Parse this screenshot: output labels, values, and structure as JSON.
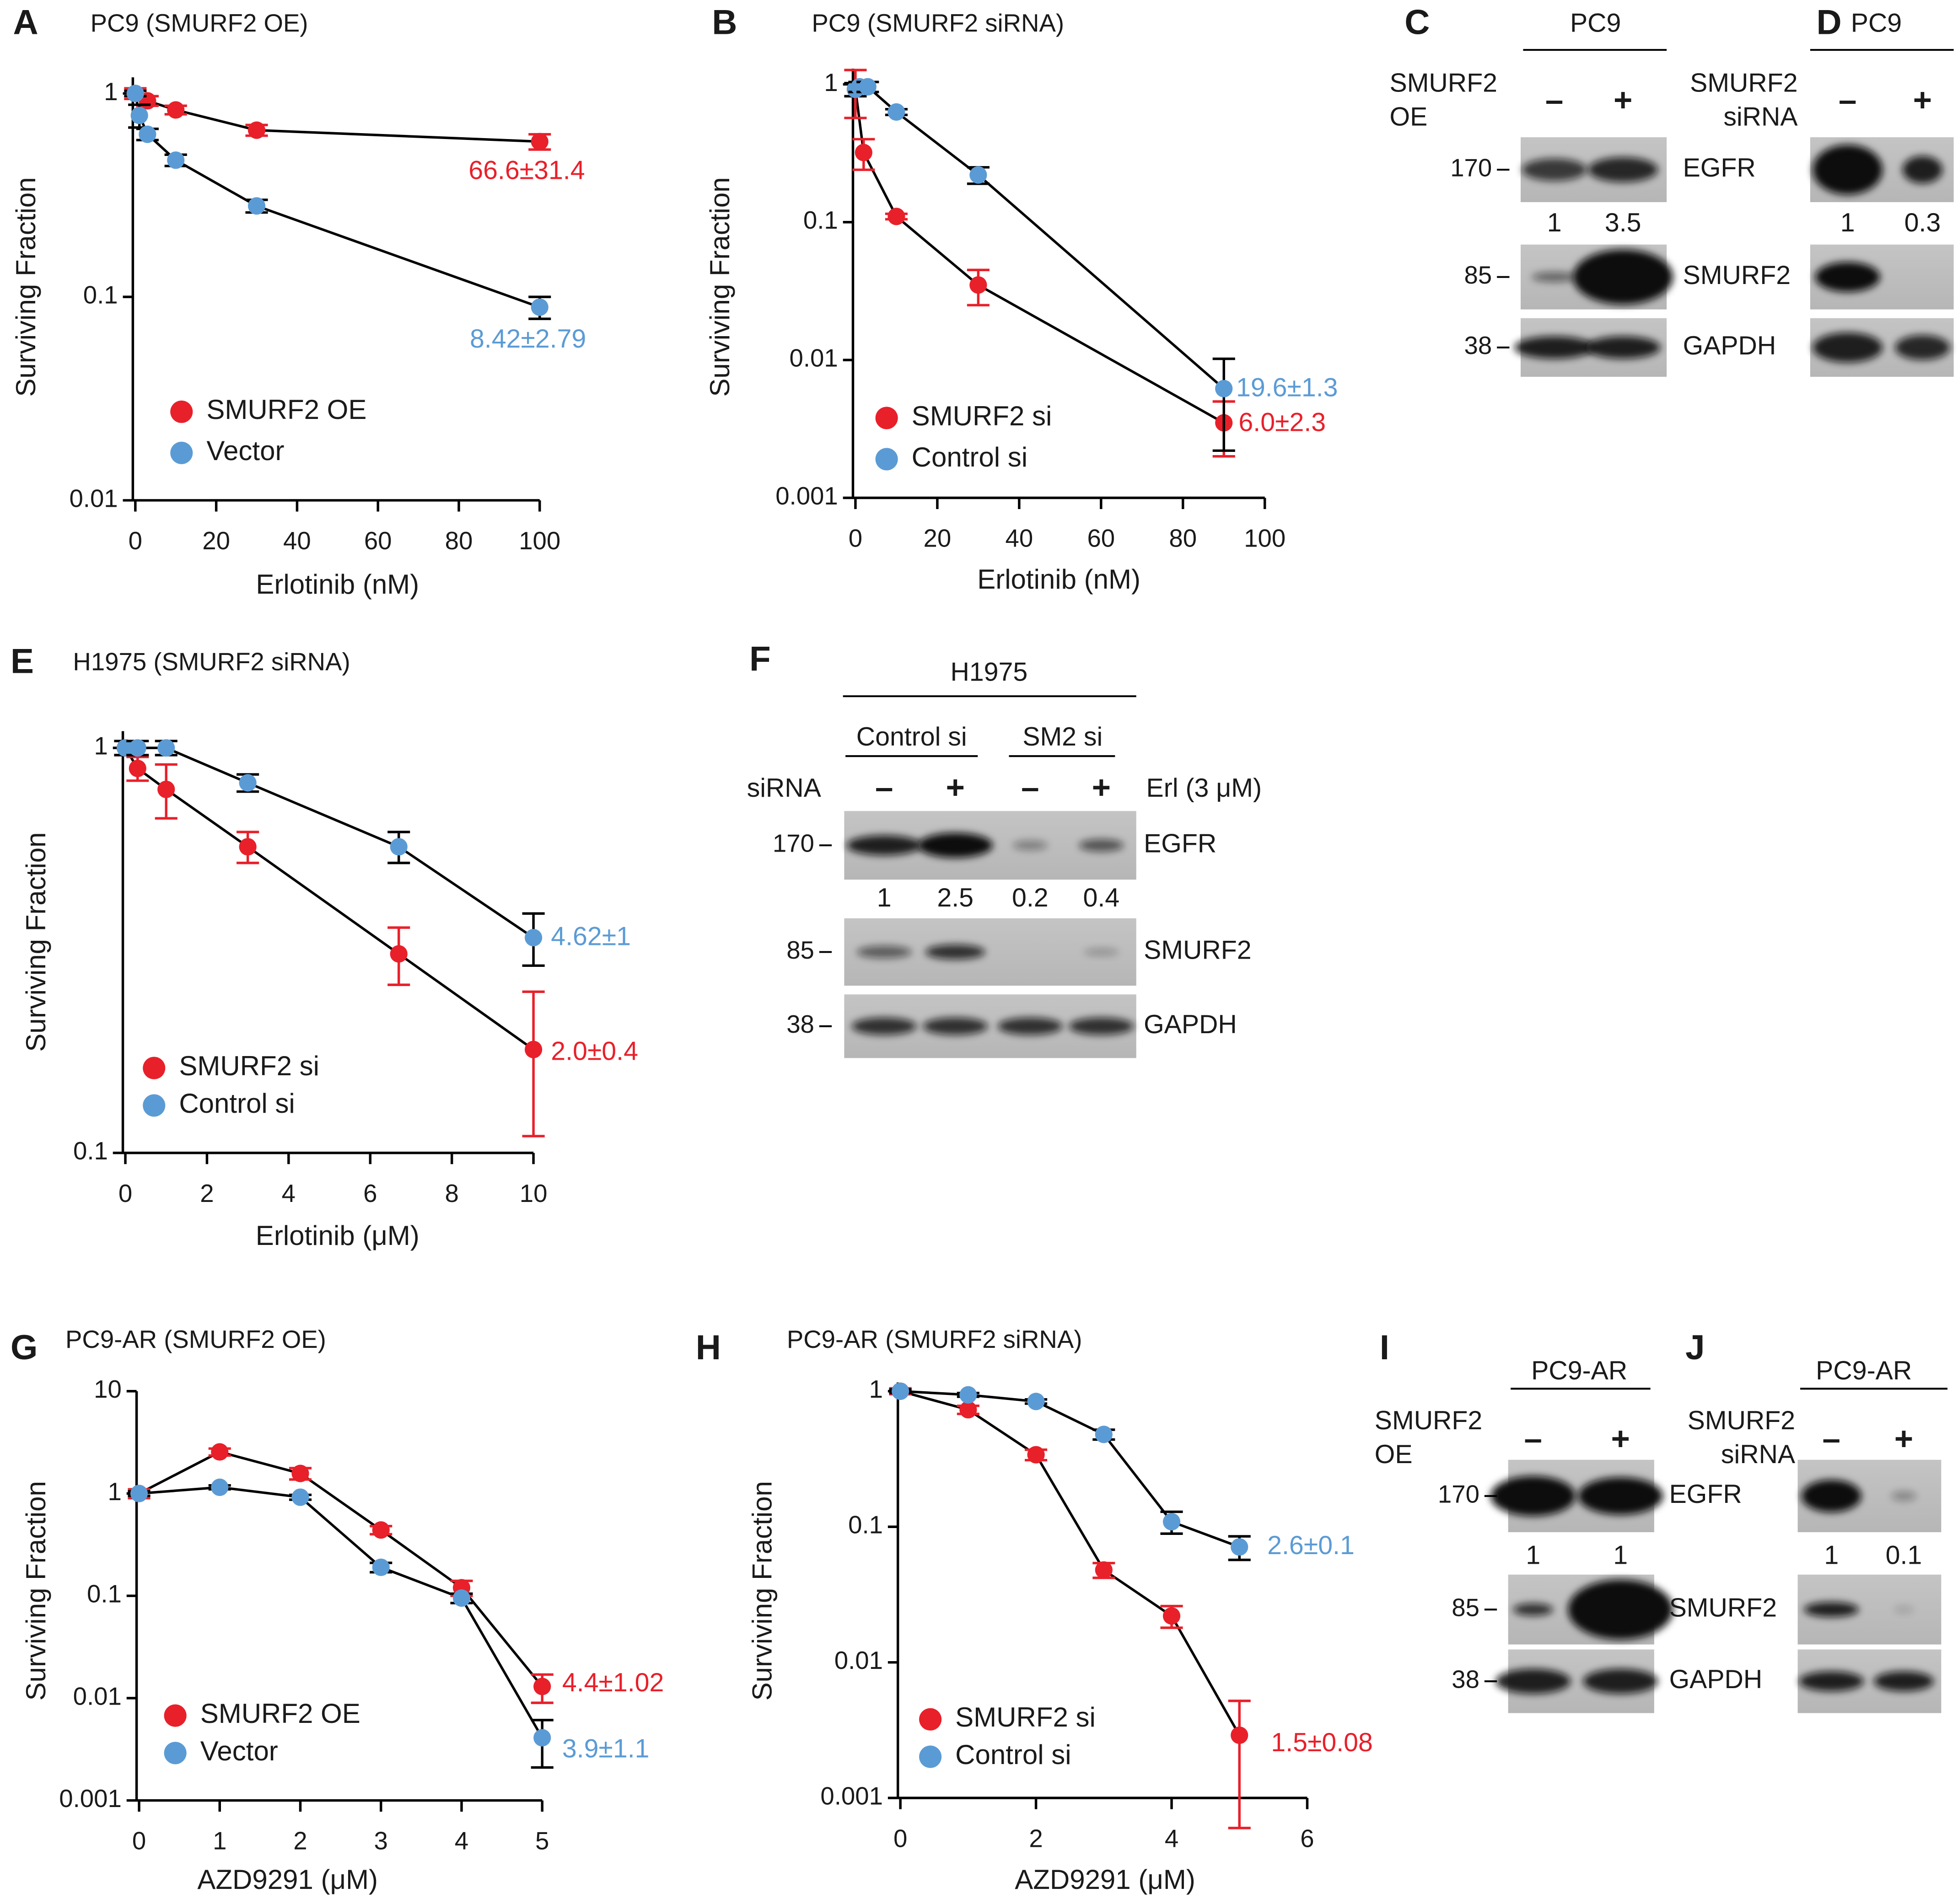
{
  "chart_data": [
    {
      "panel": "A",
      "type": "line",
      "title": "PC9 (SMURF2 OE)",
      "xlabel": "Erlotinib (nM)",
      "ylabel": "Surviving Fraction",
      "xlim": [
        0,
        100
      ],
      "xticks": [
        0,
        20,
        40,
        60,
        80,
        100
      ],
      "ylim": [
        0.01,
        1.2
      ],
      "yticks": [
        0.01,
        0.1,
        1
      ],
      "ylog": true,
      "line_color": "#000000",
      "legend": "lower left",
      "series": [
        {
          "name": "SMURF2 OE",
          "color": "#e8202a",
          "error_color": "#e8202a",
          "annotation": "66.6±31.4",
          "x": [
            0,
            3,
            10,
            30,
            100
          ],
          "values": [
            1.0,
            0.92,
            0.83,
            0.66,
            0.58
          ],
          "errors": [
            0.06,
            0.05,
            0.04,
            0.04,
            0.05
          ]
        },
        {
          "name": "Vector",
          "color": "#5b9bd5",
          "error_color": "#000000",
          "annotation": "8.42±2.79",
          "x": [
            0,
            1,
            3,
            10,
            30,
            100
          ],
          "values": [
            1.0,
            0.78,
            0.63,
            0.47,
            0.28,
            0.089
          ],
          "errors": [
            0.03,
            0.1,
            0.04,
            0.03,
            0.02,
            0.011
          ]
        }
      ]
    },
    {
      "panel": "B",
      "type": "line",
      "title": "PC9 (SMURF2 siRNA)",
      "xlabel": "Erlotinib (nM)",
      "ylabel": "Surviving Fraction",
      "xlim": [
        0,
        100
      ],
      "xticks": [
        0,
        20,
        40,
        60,
        80,
        100
      ],
      "ylim": [
        0.001,
        1.3
      ],
      "yticks": [
        0.001,
        0.01,
        0.1,
        1
      ],
      "ylog": true,
      "line_color": "#000000",
      "legend": "lower left",
      "series": [
        {
          "name": "SMURF2 si",
          "color": "#e8202a",
          "error_color": "#e8202a",
          "annotation": "6.0±2.3",
          "x": [
            0,
            2,
            10,
            30,
            90
          ],
          "values": [
            0.92,
            0.32,
            0.11,
            0.035,
            0.0035
          ],
          "errors": [
            0.35,
            0.08,
            0.005,
            0.01,
            0.0015
          ]
        },
        {
          "name": "Control si",
          "color": "#5b9bd5",
          "error_color": "#000000",
          "annotation": "19.6±1.3",
          "x": [
            0,
            1,
            3,
            10,
            30,
            90
          ],
          "values": [
            0.92,
            0.96,
            0.96,
            0.63,
            0.22,
            0.0062
          ],
          "errors": [
            0.1,
            0.08,
            0.08,
            0.03,
            0.03,
            0.004
          ]
        }
      ]
    },
    {
      "panel": "E",
      "type": "line",
      "title": "H1975 (SMURF2 siRNA)",
      "xlabel": "Erlotinib (μM)",
      "ylabel": "Surviving Fraction",
      "xlim": [
        0,
        10
      ],
      "xticks": [
        0,
        2,
        4,
        6,
        8,
        10
      ],
      "ylim": [
        0.1,
        1.1
      ],
      "yticks": [
        0.1,
        1
      ],
      "ylog": true,
      "line_color": "#000000",
      "legend": "lower left",
      "series": [
        {
          "name": "SMURF2 si",
          "color": "#e8202a",
          "error_color": "#e8202a",
          "annotation": "2.0±0.4",
          "x": [
            0,
            0.3,
            1,
            3,
            6.7,
            10
          ],
          "values": [
            1.0,
            0.89,
            0.79,
            0.57,
            0.31,
            0.18
          ],
          "errors": [
            0.04,
            0.06,
            0.12,
            0.05,
            0.05,
            0.07
          ]
        },
        {
          "name": "Control si",
          "color": "#5b9bd5",
          "error_color": "#000000",
          "annotation": "4.62±1",
          "x": [
            0,
            0.3,
            1,
            3,
            6.7,
            10
          ],
          "values": [
            1.0,
            1.0,
            1.0,
            0.82,
            0.57,
            0.34
          ],
          "errors": [
            0.04,
            0.04,
            0.04,
            0.04,
            0.05,
            0.05
          ]
        }
      ]
    },
    {
      "panel": "G",
      "type": "line",
      "title": "PC9-AR (SMURF2 OE)",
      "xlabel": "AZD9291 (μM)",
      "ylabel": "Surviving Fraction",
      "xlim": [
        0,
        5
      ],
      "xticks": [
        0,
        1,
        2,
        3,
        4,
        5
      ],
      "ylim": [
        0.001,
        10
      ],
      "yticks": [
        0.001,
        0.01,
        0.1,
        1,
        10
      ],
      "ylog": true,
      "line_color": "#000000",
      "legend": "lower left",
      "series": [
        {
          "name": "SMURF2 OE",
          "color": "#e8202a",
          "error_color": "#e8202a",
          "annotation": "4.4±1.02",
          "x": [
            0,
            1,
            2,
            3,
            4,
            5
          ],
          "values": [
            1.0,
            2.55,
            1.57,
            0.44,
            0.12,
            0.013
          ],
          "errors": [
            0.1,
            0.2,
            0.2,
            0.04,
            0.02,
            0.004
          ]
        },
        {
          "name": "Vector",
          "color": "#5b9bd5",
          "error_color": "#000000",
          "annotation": "3.9±1.1",
          "x": [
            0,
            1,
            2,
            3,
            4,
            5
          ],
          "values": [
            1.0,
            1.15,
            0.92,
            0.19,
            0.095,
            0.0041
          ],
          "errors": [
            0.05,
            0.05,
            0.05,
            0.02,
            0.01,
            0.002
          ]
        }
      ]
    },
    {
      "panel": "H",
      "type": "line",
      "title": "PC9-AR (SMURF2 siRNA)",
      "xlabel": "AZD9291 (μM)",
      "ylabel": "Surviving Fraction",
      "xlim": [
        0,
        6
      ],
      "xticks": [
        0,
        2,
        4,
        6
      ],
      "ylim": [
        0.001,
        1.16
      ],
      "yticks": [
        0.001,
        0.01,
        0.1,
        1
      ],
      "ylog": true,
      "line_color": "#000000",
      "legend": "lower left",
      "series": [
        {
          "name": "SMURF2 si",
          "color": "#e8202a",
          "error_color": "#e8202a",
          "annotation": "1.5±0.08",
          "x": [
            0,
            1,
            2,
            3,
            4,
            5
          ],
          "values": [
            1.0,
            0.73,
            0.34,
            0.048,
            0.022,
            0.0029
          ],
          "errors": [
            0.05,
            0.05,
            0.03,
            0.006,
            0.004,
            0.0023
          ]
        },
        {
          "name": "Control si",
          "color": "#5b9bd5",
          "error_color": "#000000",
          "annotation": "2.6±0.1",
          "x": [
            0,
            1,
            2,
            3,
            4,
            5
          ],
          "values": [
            1.0,
            0.94,
            0.84,
            0.48,
            0.109,
            0.071
          ],
          "errors": [
            0.03,
            0.03,
            0.03,
            0.04,
            0.02,
            0.014
          ]
        }
      ]
    }
  ],
  "blots": [
    {
      "panel": "C",
      "cell_line": "PC9",
      "condition": [
        "SMURF2",
        "OE"
      ],
      "lanes": [
        "–",
        "+"
      ],
      "rows": [
        {
          "mw": 170,
          "protein": "EGFR"
        },
        {
          "mw": 85,
          "protein": "SMURF2"
        },
        {
          "mw": 38,
          "protein": "GAPDH"
        }
      ],
      "quantification": [
        1,
        3.5
      ]
    },
    {
      "panel": "D",
      "cell_line": "PC9",
      "condition": [
        "SMURF2",
        "siRNA"
      ],
      "lanes": [
        "–",
        "+"
      ],
      "rows": [
        {
          "protein": "EGFR"
        },
        {
          "protein": "SMURF2"
        },
        {
          "protein": "GAPDH"
        }
      ],
      "quantification": [
        1,
        0.3
      ]
    },
    {
      "panel": "F",
      "cell_line": "H1975",
      "groups": [
        "Control si",
        "SM2 si"
      ],
      "row_label": "siRNA",
      "treatment": "Erl (3 μM)",
      "lanes": [
        "–",
        "+",
        "–",
        "+"
      ],
      "rows": [
        {
          "mw": 170,
          "protein": "EGFR"
        },
        {
          "mw": 85,
          "protein": "SMURF2"
        },
        {
          "mw": 38,
          "protein": "GAPDH"
        }
      ],
      "quantification": [
        1,
        2.5,
        0.2,
        0.4
      ]
    },
    {
      "panel": "I",
      "cell_line": "PC9-AR",
      "condition": [
        "SMURF2",
        "OE"
      ],
      "lanes": [
        "–",
        "+"
      ],
      "rows": [
        {
          "mw": 170,
          "protein": "EGFR"
        },
        {
          "mw": 85,
          "protein": "SMURF2"
        },
        {
          "mw": 38,
          "protein": "GAPDH"
        }
      ],
      "quantification": [
        1,
        1
      ]
    },
    {
      "panel": "J",
      "cell_line": "PC9-AR",
      "condition": [
        "SMURF2",
        "siRNA"
      ],
      "lanes": [
        "–",
        "+"
      ],
      "rows": [
        {
          "protein": "EGFR"
        },
        {
          "protein": "SMURF2"
        },
        {
          "protein": "GAPDH"
        }
      ],
      "quantification": [
        1,
        0.1
      ]
    }
  ]
}
